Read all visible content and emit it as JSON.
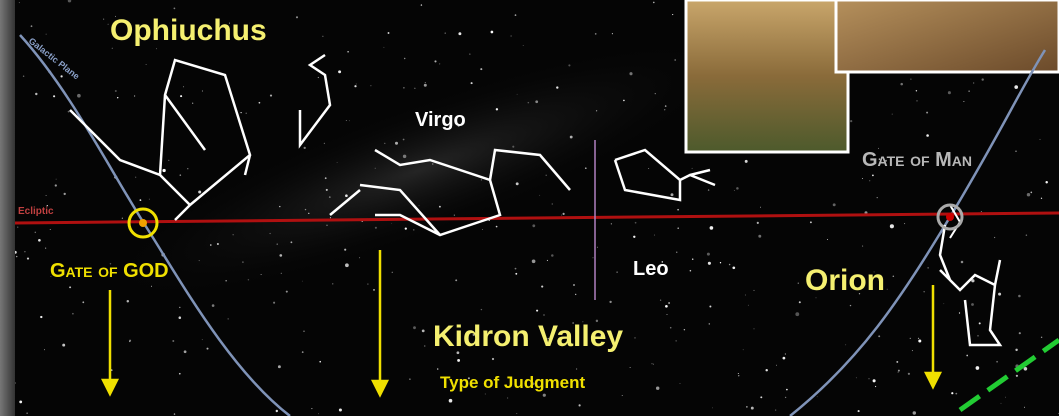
{
  "labels": {
    "ophiuchus": "Ophiuchus",
    "virgo": "Virgo",
    "leo": "Leo",
    "orion": "Orion",
    "gate_of_god": "Gate of GOD",
    "gate_of_man": "Gate of Man",
    "galactic_plane": "Galactic Plane",
    "ecliptic": "Ecliptic",
    "kidron_valley": "Kidron Valley",
    "type_of_judgment": "Type of Judgment"
  }
}
